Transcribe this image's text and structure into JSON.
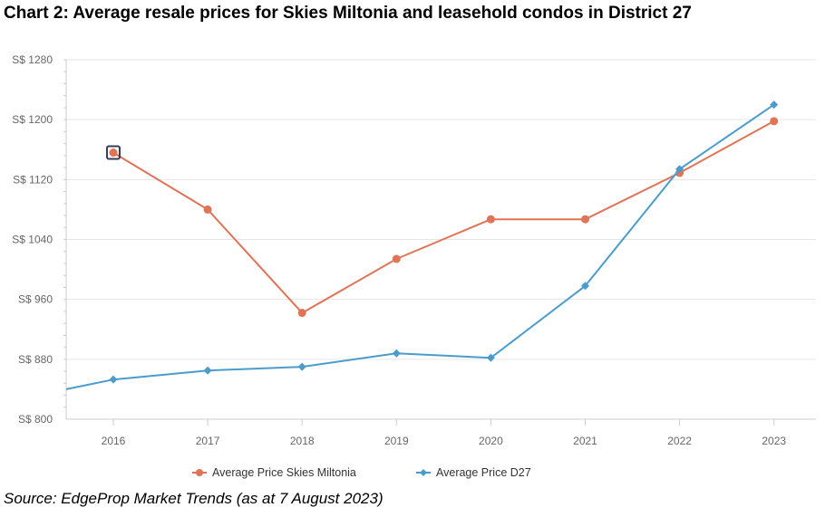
{
  "chart_data": {
    "type": "line",
    "title": "Chart 2: Average resale prices for Skies Miltonia and leasehold condos in District 27",
    "x": [
      "2016",
      "2017",
      "2018",
      "2019",
      "2020",
      "2021",
      "2022",
      "2023"
    ],
    "series": [
      {
        "name": "Average Price Skies Miltonia",
        "color": "#e07456",
        "marker": "circle",
        "values": [
          1156,
          1080,
          942,
          1014,
          1067,
          1067,
          1129,
          1198
        ]
      },
      {
        "name": "Average Price D27",
        "color": "#4a9ccc",
        "marker": "diamond",
        "values": [
          853,
          865,
          870,
          888,
          882,
          978,
          1134,
          1220
        ]
      }
    ],
    "x_start_value": 840,
    "ylim": [
      800,
      1280
    ],
    "yticks": [
      800,
      880,
      960,
      1040,
      1120,
      1200,
      1280
    ],
    "ytick_prefix": "S$ ",
    "grid": "horizontal",
    "legend_position": "bottom",
    "highlighted_point": {
      "series": 0,
      "index": 0
    },
    "background": "#ffffff",
    "grid_color": "#e6e6e6",
    "axis_color": "#cccccc"
  },
  "source": "Source: EdgeProp Market Trends (as at 7 August 2023)"
}
